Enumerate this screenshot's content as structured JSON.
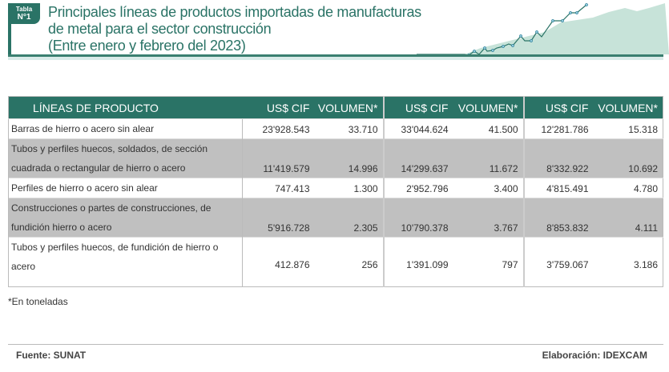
{
  "badge": {
    "line1": "Tabla",
    "line2": "N°1"
  },
  "title": {
    "line1": "Principales líneas de productos importadas de manufacturas",
    "line2": "de metal para el sector construcción",
    "line3": "(Entre enero y febrero del 2023)"
  },
  "table": {
    "headers": [
      "LÍNEAS DE PRODUCTO",
      "US$ CIF",
      "VOLUMEN*",
      "US$ CIF",
      "VOLUMEN*",
      "US$ CIF",
      "VOLUMEN*"
    ],
    "rows": [
      {
        "label": "Barras de hierro o acero sin alear",
        "values": [
          "23'928.543",
          "33.710",
          "33'044.624",
          "41.500",
          "12'281.786",
          "15.318"
        ]
      },
      {
        "label": "Tubos y perfiles huecos, soldados, de sección cuadrada o rectangular de hierro o acero",
        "values": [
          "11'419.579",
          "14.996",
          "14'299.637",
          "11.672",
          "8'332.922",
          "10.692"
        ]
      },
      {
        "label": "Perfiles de hierro o acero sin alear",
        "values": [
          "747.413",
          "1.300",
          "2'952.796",
          "3.400",
          "4'815.491",
          "4.780"
        ]
      },
      {
        "label": "Construcciones o partes de construcciones, de fundición hierro o acero",
        "values": [
          "5'916.728",
          "2.305",
          "10'790.378",
          "3.767",
          "8'853.832",
          "4.111"
        ]
      },
      {
        "label": "Tubos y perfiles huecos, de fundición de hierro o acero",
        "values": [
          "412.876",
          "256",
          "1'391.099",
          "797",
          "3'759.067",
          "3.186"
        ]
      }
    ]
  },
  "note": "*En toneladas",
  "footer": {
    "source": "Fuente: SUNAT",
    "credit": "Elaboración: IDEXCAM"
  },
  "colors": {
    "accent": "#2a7366",
    "row_alt": "#c0c0c0"
  }
}
